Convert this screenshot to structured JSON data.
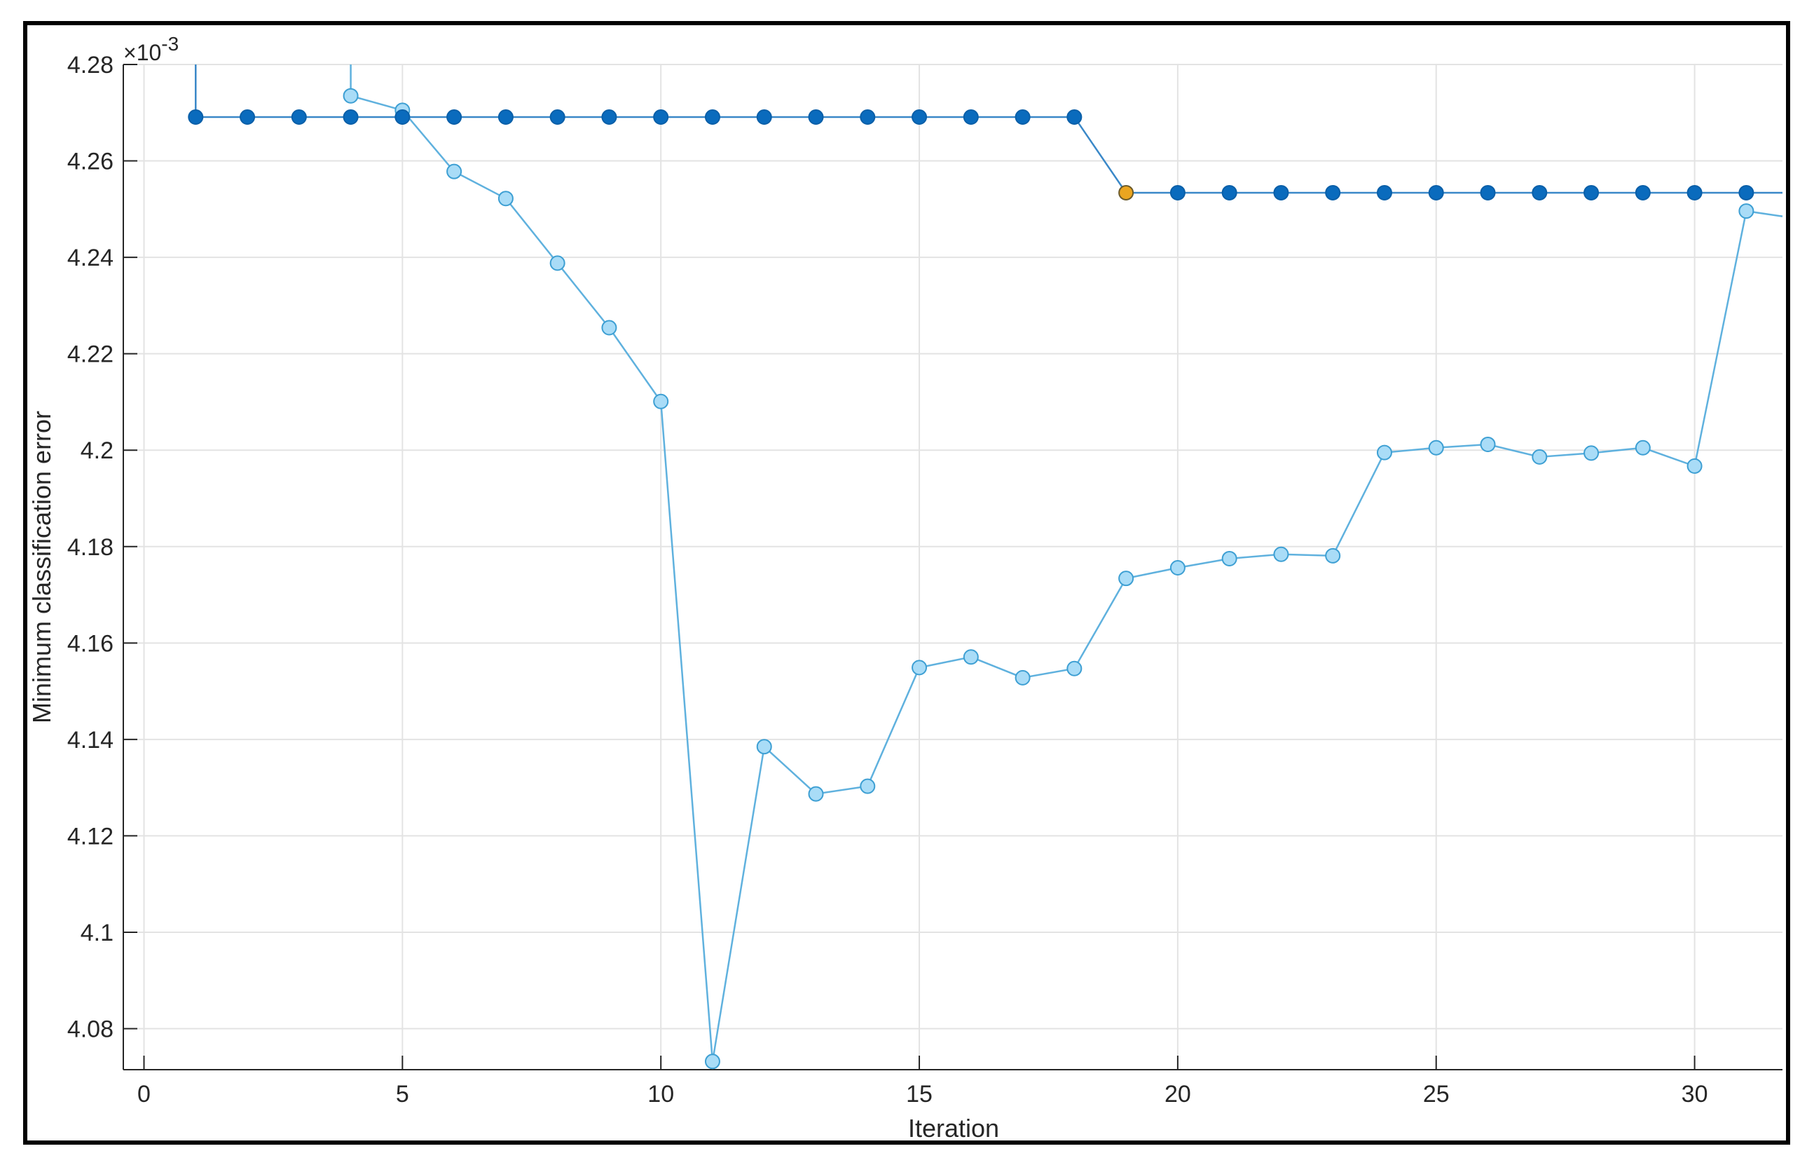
{
  "chart_data": {
    "type": "line",
    "xlabel": "Iteration",
    "ylabel": "Minimum classification error",
    "y_exponent_label": "×10",
    "y_exponent_power": "-3",
    "xlim": [
      -0.4,
      31.7
    ],
    "ylim": [
      4.0715,
      4.28
    ],
    "xticks": [
      0,
      5,
      10,
      15,
      20,
      25,
      30
    ],
    "xtick_labels": [
      "0",
      "5",
      "10",
      "15",
      "20",
      "25",
      "30"
    ],
    "yticks": [
      4.08,
      4.1,
      4.12,
      4.14,
      4.16,
      4.18,
      4.2,
      4.22,
      4.24,
      4.26,
      4.28
    ],
    "ytick_labels": [
      "4.08",
      "4.1",
      "4.12",
      "4.14",
      "4.16",
      "4.18",
      "4.2",
      "4.22",
      "4.24",
      "4.26",
      "4.28"
    ],
    "grid": true,
    "series": [
      {
        "color": "#5fb1de",
        "marker_fill": "#a9dcf7",
        "marker_edge": "#3d9fd3",
        "x": [
          4,
          5,
          6,
          7,
          8,
          9,
          10,
          11,
          12,
          13,
          14,
          15,
          16,
          17,
          18,
          19,
          20,
          21,
          22,
          23,
          24,
          25,
          26,
          27,
          28,
          29,
          30,
          31
        ],
        "y": [
          4.2735,
          4.2705,
          4.2578,
          4.2522,
          4.2388,
          4.2254,
          4.2101,
          4.0732,
          4.1385,
          4.1287,
          4.1303,
          4.1549,
          4.1571,
          4.1528,
          4.1547,
          4.1734,
          4.1756,
          4.1775,
          4.1784,
          4.1781,
          4.1995,
          4.2005,
          4.2012,
          4.1986,
          4.1994,
          4.2005,
          4.1967,
          4.2496
        ],
        "entry_from_above_at": 4,
        "exit_to": [
          31.7,
          4.2485
        ]
      },
      {
        "color": "#3a88c8",
        "marker_fill": "#0a6bbd",
        "marker_edge": "#0a5fa8",
        "x": [
          1,
          2,
          3,
          4,
          5,
          6,
          7,
          8,
          9,
          10,
          11,
          12,
          13,
          14,
          15,
          16,
          17,
          18,
          19,
          20,
          21,
          22,
          23,
          24,
          25,
          26,
          27,
          28,
          29,
          30,
          31
        ],
        "y": [
          4.2691,
          4.2691,
          4.2691,
          4.2691,
          4.2691,
          4.2691,
          4.2691,
          4.2691,
          4.2691,
          4.2691,
          4.2691,
          4.2691,
          4.2691,
          4.2691,
          4.2691,
          4.2691,
          4.2691,
          4.2691,
          4.2534,
          4.2534,
          4.2534,
          4.2534,
          4.2534,
          4.2534,
          4.2534,
          4.2534,
          4.2534,
          4.2534,
          4.2534,
          4.2534,
          4.2534
        ],
        "entry_from_above_at": 1,
        "exit_to": [
          31.7,
          4.2534
        ],
        "highlight": {
          "x": 19,
          "y": 4.2534,
          "fill": "#eaa520",
          "edge": "#6b5a2a"
        }
      }
    ]
  }
}
